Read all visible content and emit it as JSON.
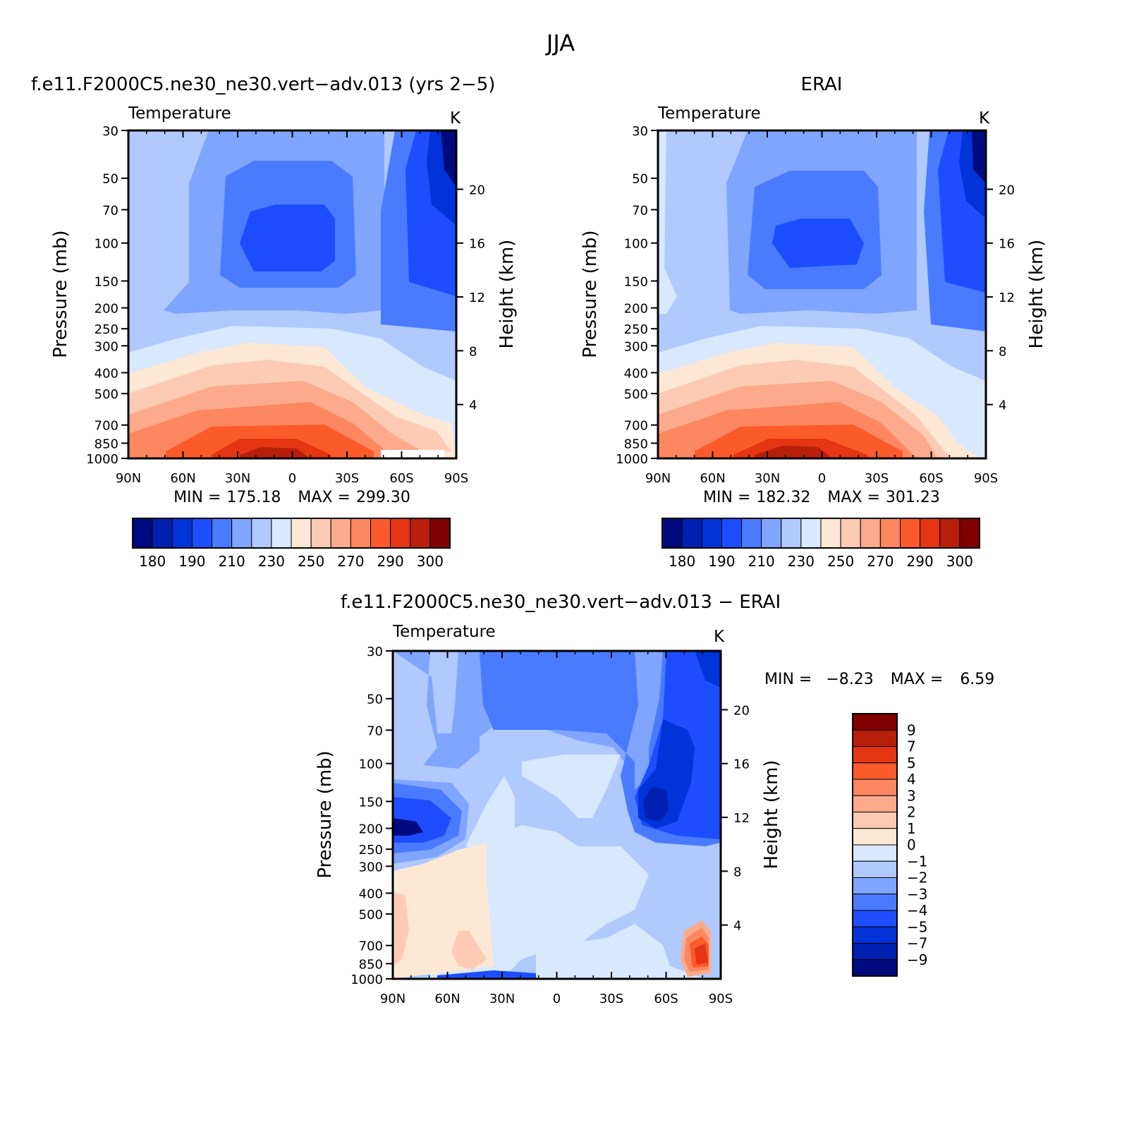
{
  "figure": {
    "title": "JJA"
  },
  "colors": {
    "temp_scale": [
      "#000a7f",
      "#0020b2",
      "#0034d9",
      "#1d4dff",
      "#4a7bff",
      "#7fa5ff",
      "#b0c9ff",
      "#d8e8fd",
      "#fde8d6",
      "#fdcbb4",
      "#fcaa8b",
      "#fc8760",
      "#fb5a2a",
      "#e53512",
      "#b81f0a",
      "#800000"
    ],
    "diff_scale": [
      "#000a7f",
      "#0020b2",
      "#0034d9",
      "#1d4dff",
      "#4a7bff",
      "#7fa5ff",
      "#b0c9ff",
      "#d8e8fd",
      "#fde8d6",
      "#fdcbb4",
      "#fcaa8b",
      "#fc8760",
      "#fb5a2a",
      "#e53512",
      "#b81f0a",
      "#800000"
    ]
  },
  "chart_data": [
    {
      "type": "contour",
      "title": "f.e11.F2000C5.ne30_ne30.vert−adv.013 (yrs 2−5)",
      "field_label": "Temperature",
      "units": "K",
      "xlabel": "",
      "ylabel": "Pressure (mb)",
      "y2label": "Height (km)",
      "x_ticks": [
        "90N",
        "60N",
        "30N",
        "0",
        "30S",
        "60S",
        "90S"
      ],
      "y_ticks": [
        30,
        50,
        70,
        100,
        150,
        200,
        250,
        300,
        400,
        500,
        700,
        850,
        1000
      ],
      "y2_ticks": [
        20,
        16,
        12,
        8,
        4
      ],
      "ylim": [
        30,
        1000
      ],
      "y_scale": "log",
      "stats": {
        "min_label": "MIN =",
        "min": "175.18",
        "max_label": "MAX =",
        "max": "299.30"
      },
      "colorbar": {
        "orientation": "horizontal",
        "labels": [
          "180",
          "190",
          "210",
          "230",
          "250",
          "270",
          "290",
          "300"
        ],
        "levels": [
          175,
          180,
          185,
          190,
          200,
          210,
          220,
          230,
          240,
          250,
          260,
          270,
          280,
          290,
          295,
          300
        ]
      }
    },
    {
      "type": "contour",
      "title": "ERAI",
      "field_label": "Temperature",
      "units": "K",
      "xlabel": "",
      "ylabel": "Pressure (mb)",
      "y2label": "Height (km)",
      "x_ticks": [
        "90N",
        "60N",
        "30N",
        "0",
        "30S",
        "60S",
        "90S"
      ],
      "y_ticks": [
        30,
        50,
        70,
        100,
        150,
        200,
        250,
        300,
        400,
        500,
        700,
        850,
        1000
      ],
      "y2_ticks": [
        20,
        16,
        12,
        8,
        4
      ],
      "ylim": [
        30,
        1000
      ],
      "y_scale": "log",
      "stats": {
        "min_label": "MIN =",
        "min": "182.32",
        "max_label": "MAX =",
        "max": "301.23"
      },
      "colorbar": {
        "orientation": "horizontal",
        "labels": [
          "180",
          "190",
          "210",
          "230",
          "250",
          "270",
          "290",
          "300"
        ],
        "levels": [
          175,
          180,
          185,
          190,
          200,
          210,
          220,
          230,
          240,
          250,
          260,
          270,
          280,
          290,
          295,
          300
        ]
      }
    },
    {
      "type": "contour",
      "title": "f.e11.F2000C5.ne30_ne30.vert−adv.013 − ERAI",
      "field_label": "Temperature",
      "units": "K",
      "xlabel": "",
      "ylabel": "Pressure (mb)",
      "y2label": "Height (km)",
      "x_ticks": [
        "90N",
        "60N",
        "30N",
        "0",
        "30S",
        "60S",
        "90S"
      ],
      "y_ticks": [
        30,
        50,
        70,
        100,
        150,
        200,
        250,
        300,
        400,
        500,
        700,
        850,
        1000
      ],
      "y2_ticks": [
        20,
        16,
        12,
        8,
        4
      ],
      "ylim": [
        30,
        1000
      ],
      "y_scale": "log",
      "stats": {
        "min_label": "MIN =",
        "min": "−8.23",
        "max_label": "MAX =",
        "max": "6.59"
      },
      "colorbar": {
        "orientation": "vertical",
        "labels": [
          "9",
          "7",
          "5",
          "4",
          "3",
          "2",
          "1",
          "0",
          "−1",
          "−2",
          "−3",
          "−4",
          "−5",
          "−7",
          "−9"
        ],
        "levels": [
          9,
          7,
          5,
          4,
          3,
          2,
          1,
          0,
          -1,
          -2,
          -3,
          -4,
          -5,
          -7,
          -9
        ]
      }
    }
  ]
}
